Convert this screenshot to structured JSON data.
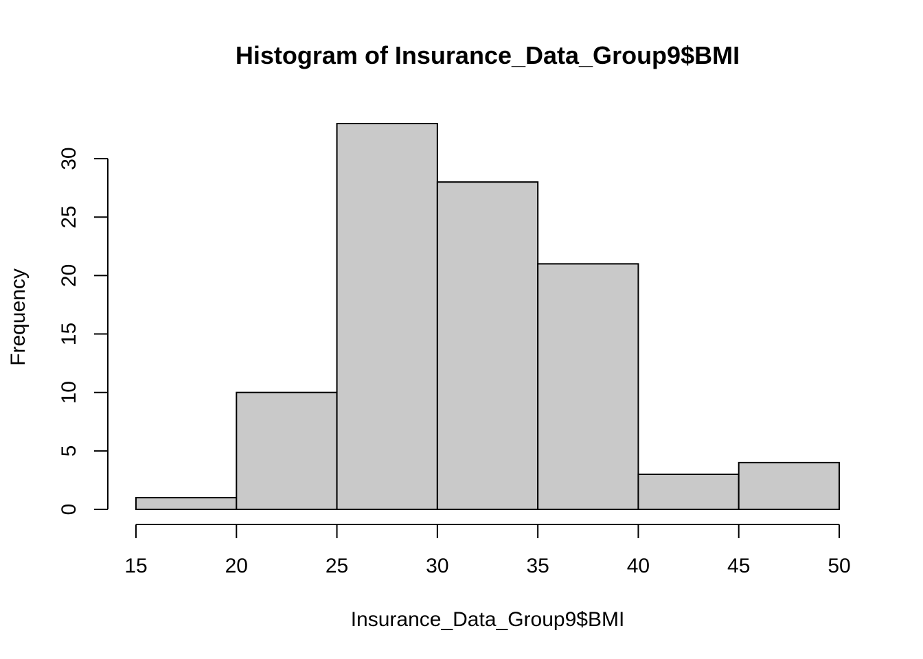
{
  "chart_data": {
    "type": "bar",
    "title": "Histogram of Insurance_Data_Group9$BMI",
    "xlabel": "Insurance_Data_Group9$BMI",
    "ylabel": "Frequency",
    "bins": [
      {
        "from": 15,
        "to": 20,
        "count": 1
      },
      {
        "from": 20,
        "to": 25,
        "count": 10
      },
      {
        "from": 25,
        "to": 30,
        "count": 33
      },
      {
        "from": 30,
        "to": 35,
        "count": 28
      },
      {
        "from": 35,
        "to": 40,
        "count": 21
      },
      {
        "from": 40,
        "to": 45,
        "count": 3
      },
      {
        "from": 45,
        "to": 50,
        "count": 4
      }
    ],
    "xlim": [
      15,
      50
    ],
    "ylim": [
      0,
      33
    ],
    "x_ticks": [
      15,
      20,
      25,
      30,
      35,
      40,
      45,
      50
    ],
    "y_ticks": [
      0,
      5,
      10,
      15,
      20,
      25,
      30
    ],
    "grid": false,
    "legend": "none",
    "bar_color": "#c9c9c9",
    "edge_color": "#000000"
  }
}
